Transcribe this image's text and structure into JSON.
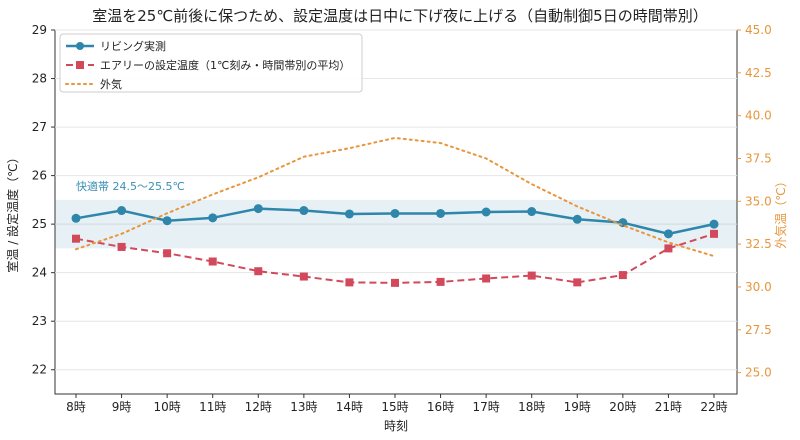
{
  "chart_data": {
    "type": "line",
    "title": "室温を25℃前後に保つため、設定温度は日中に下げ夜に上げる（自動制御5日の時間帯別）",
    "xlabel": "時刻",
    "ylabel": "室温 / 設定温度（℃）",
    "y2label": "外気温（℃）",
    "categories": [
      "8時",
      "9時",
      "10時",
      "11時",
      "12時",
      "13時",
      "14時",
      "15時",
      "16時",
      "17時",
      "18時",
      "19時",
      "20時",
      "21時",
      "22時"
    ],
    "ylim": [
      21.5,
      29
    ],
    "yticks": [
      22,
      23,
      24,
      25,
      26,
      27,
      28,
      29
    ],
    "y2lim": [
      23.75,
      45
    ],
    "y2ticks": [
      "25.0",
      "27.5",
      "30.0",
      "32.5",
      "35.0",
      "37.5",
      "40.0",
      "42.5",
      "45.0"
    ],
    "comfort_band": {
      "label": "快適帯 24.5〜25.5℃",
      "range": [
        24.5,
        25.5
      ]
    },
    "legend_position": "top-left",
    "grid": "horizontal",
    "series": [
      {
        "name": "リビング実測",
        "axis": "left",
        "color": "#2e86ab",
        "style": "solid",
        "marker": "circle",
        "values": [
          25.12,
          25.28,
          25.07,
          25.13,
          25.32,
          25.28,
          25.21,
          25.22,
          25.22,
          25.25,
          25.26,
          25.1,
          25.03,
          24.8,
          25.0
        ]
      },
      {
        "name": "エアリーの設定温度（1℃刻み・時間帯別の平均）",
        "axis": "left",
        "color": "#d1495b",
        "style": "dashed",
        "marker": "square",
        "values": [
          24.7,
          24.53,
          24.4,
          24.23,
          24.03,
          23.92,
          23.8,
          23.79,
          23.81,
          23.88,
          23.94,
          23.8,
          23.95,
          24.5,
          24.8
        ]
      },
      {
        "name": "外気",
        "axis": "right",
        "color": "#e8963c",
        "style": "dotted",
        "marker": "none",
        "values": [
          32.2,
          33.1,
          34.3,
          35.4,
          36.4,
          37.6,
          38.1,
          38.7,
          38.4,
          37.5,
          36.0,
          34.7,
          33.6,
          32.6,
          31.8
        ]
      }
    ]
  }
}
